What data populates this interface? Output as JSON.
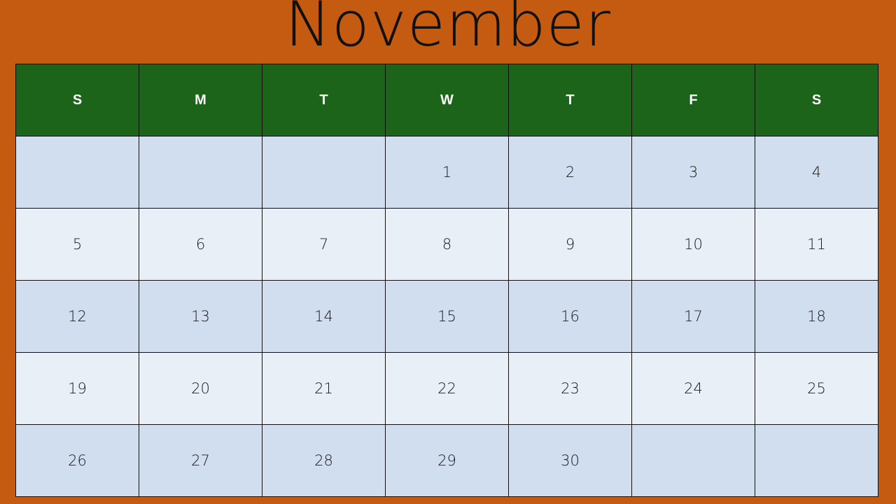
{
  "title": "November",
  "colors": {
    "background": "#C55A11",
    "header": "#1C6419",
    "row_dark": "#D0DEEF",
    "row_light": "#E9EFF7"
  },
  "weekday_headers": [
    "S",
    "M",
    "T",
    "W",
    "T",
    "F",
    "S"
  ],
  "weeks": [
    [
      "",
      "",
      "",
      "1",
      "2",
      "3",
      "4"
    ],
    [
      "5",
      "6",
      "7",
      "8",
      "9",
      "10",
      "11"
    ],
    [
      "12",
      "13",
      "14",
      "15",
      "16",
      "17",
      "18"
    ],
    [
      "19",
      "20",
      "21",
      "22",
      "23",
      "24",
      "25"
    ],
    [
      "26",
      "27",
      "28",
      "29",
      "30",
      "",
      ""
    ]
  ]
}
